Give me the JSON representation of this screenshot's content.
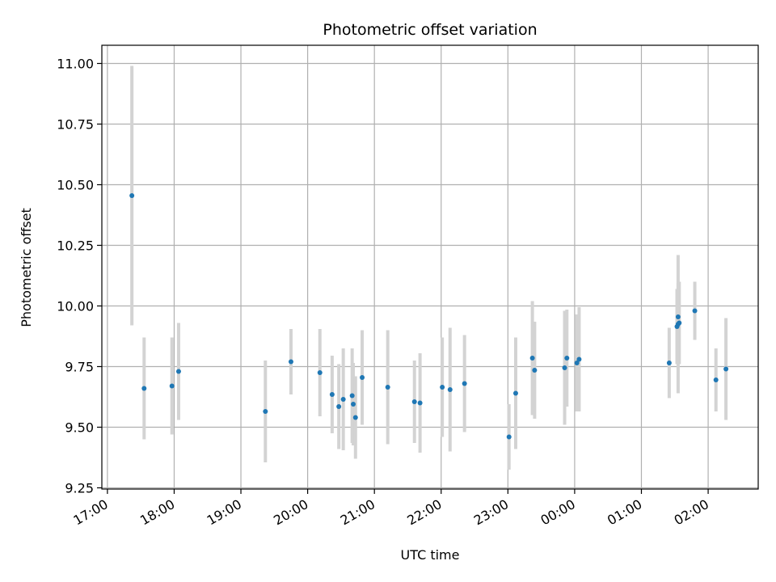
{
  "chart_data": {
    "type": "scatter",
    "title": "Photometric offset variation",
    "xlabel": "UTC time",
    "ylabel": "Photometric offset",
    "grid": true,
    "x_unit": "UTC time of night (17:00 day 1 to 02:45 day 2)",
    "x_tick_labels": [
      "17:00",
      "18:00",
      "19:00",
      "20:00",
      "21:00",
      "22:00",
      "23:00",
      "00:00",
      "01:00",
      "02:00"
    ],
    "y_tick_labels": [
      "9.25",
      "9.50",
      "9.75",
      "10.00",
      "10.25",
      "10.50",
      "10.75",
      "11.00"
    ],
    "ylim": [
      9.245,
      11.075
    ],
    "xlim": [
      "16:55",
      "02:45"
    ],
    "colors": {
      "point": "#1f77b4",
      "errorbar": "#d3d3d3",
      "grid": "#b0b0b0"
    },
    "points": [
      {
        "x": "17:22",
        "y": 10.455,
        "err": 0.535
      },
      {
        "x": "17:33",
        "y": 9.66,
        "err": 0.21
      },
      {
        "x": "17:58",
        "y": 9.67,
        "err": 0.2
      },
      {
        "x": "18:04",
        "y": 9.73,
        "err": 0.2
      },
      {
        "x": "19:22",
        "y": 9.565,
        "err": 0.21
      },
      {
        "x": "19:45",
        "y": 9.77,
        "err": 0.135
      },
      {
        "x": "20:11",
        "y": 9.725,
        "err": 0.18
      },
      {
        "x": "20:22",
        "y": 9.635,
        "err": 0.16
      },
      {
        "x": "20:28",
        "y": 9.585,
        "err": 0.175
      },
      {
        "x": "20:32",
        "y": 9.615,
        "err": 0.21
      },
      {
        "x": "20:40",
        "y": 9.63,
        "err": 0.195
      },
      {
        "x": "20:41",
        "y": 9.595,
        "err": 0.17
      },
      {
        "x": "20:43",
        "y": 9.54,
        "err": 0.17
      },
      {
        "x": "20:49",
        "y": 9.705,
        "err": 0.195
      },
      {
        "x": "21:12",
        "y": 9.665,
        "err": 0.235
      },
      {
        "x": "21:36",
        "y": 9.605,
        "err": 0.17
      },
      {
        "x": "21:41",
        "y": 9.6,
        "err": 0.205
      },
      {
        "x": "22:01",
        "y": 9.665,
        "err": 0.205
      },
      {
        "x": "22:08",
        "y": 9.655,
        "err": 0.255
      },
      {
        "x": "22:21",
        "y": 9.68,
        "err": 0.2
      },
      {
        "x": "23:01",
        "y": 9.46,
        "err": 0.135
      },
      {
        "x": "23:07",
        "y": 9.64,
        "err": 0.23
      },
      {
        "x": "23:22",
        "y": 9.785,
        "err": 0.235
      },
      {
        "x": "23:24",
        "y": 9.735,
        "err": 0.2
      },
      {
        "x": "23:51",
        "y": 9.745,
        "err": 0.235
      },
      {
        "x": "23:53",
        "y": 9.785,
        "err": 0.2
      },
      {
        "x": "00:02",
        "y": 9.765,
        "err": 0.2
      },
      {
        "x": "00:04",
        "y": 9.78,
        "err": 0.215
      },
      {
        "x": "01:25",
        "y": 9.765,
        "err": 0.145
      },
      {
        "x": "01:32",
        "y": 9.915,
        "err": 0.155
      },
      {
        "x": "01:33",
        "y": 9.925,
        "err": 0.285
      },
      {
        "x": "01:33",
        "y": 9.955,
        "err": 0.14
      },
      {
        "x": "01:34",
        "y": 9.93,
        "err": 0.17
      },
      {
        "x": "01:48",
        "y": 9.98,
        "err": 0.12
      },
      {
        "x": "02:07",
        "y": 9.695,
        "err": 0.13
      },
      {
        "x": "02:16",
        "y": 9.74,
        "err": 0.21
      }
    ]
  }
}
